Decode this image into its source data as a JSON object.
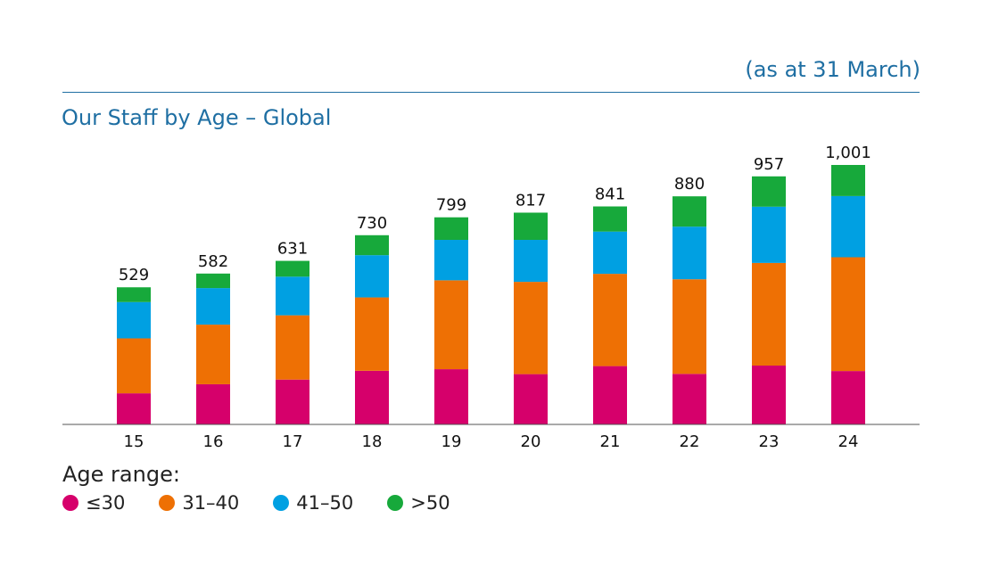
{
  "header": {
    "note": "(as at 31 March)",
    "title": "Our Staff by Age – Global"
  },
  "legend": {
    "title": "Age range:",
    "items": [
      {
        "label": "≤30",
        "color": "#d6006b"
      },
      {
        "label": "31–40",
        "color": "#ee7004"
      },
      {
        "label": "41–50",
        "color": "#00a0e2"
      },
      {
        "label": ">50",
        "color": "#17a93b"
      }
    ]
  },
  "chart_data": {
    "type": "bar",
    "stacked": true,
    "title": "Our Staff by Age – Global",
    "xlabel": "",
    "ylabel": "",
    "categories": [
      "15",
      "16",
      "17",
      "18",
      "19",
      "20",
      "21",
      "22",
      "23",
      "24"
    ],
    "totals": [
      "529",
      "582",
      "631",
      "730",
      "799",
      "817",
      "841",
      "880",
      "957",
      "1,001"
    ],
    "series": [
      {
        "name": "≤30",
        "color": "#d6006b",
        "values": [
          120,
          155,
          173,
          207,
          213,
          194,
          225,
          195,
          227,
          206
        ]
      },
      {
        "name": "31–40",
        "color": "#ee7004",
        "values": [
          212,
          230,
          248,
          283,
          343,
          356,
          356,
          365,
          396,
          439
        ]
      },
      {
        "name": "41–50",
        "color": "#00a0e2",
        "values": [
          140,
          141,
          149,
          163,
          156,
          162,
          163,
          203,
          217,
          236
        ]
      },
      {
        "name": ">50",
        "color": "#17a93b",
        "values": [
          57,
          56,
          61,
          77,
          87,
          105,
          97,
          117,
          117,
          120
        ]
      }
    ],
    "ylim": [
      0,
      1001
    ],
    "grid": false,
    "legend_position": "bottom-left"
  }
}
